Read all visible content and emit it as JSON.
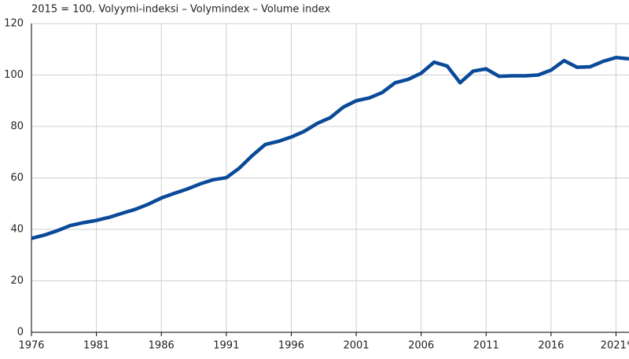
{
  "chart_data": {
    "type": "line",
    "title": "2015 = 100. Volyymi-indeksi – Volymindex – Volume index",
    "x": [
      1976,
      1977,
      1978,
      1979,
      1980,
      1981,
      1982,
      1983,
      1984,
      1985,
      1986,
      1987,
      1988,
      1989,
      1990,
      1991,
      1992,
      1993,
      1994,
      1995,
      1996,
      1997,
      1998,
      1999,
      2000,
      2001,
      2002,
      2003,
      2004,
      2005,
      2006,
      2007,
      2008,
      2009,
      2010,
      2011,
      2012,
      2013,
      2014,
      2015,
      2016,
      2017,
      2018,
      2019,
      2020,
      2021,
      2022
    ],
    "series": [
      {
        "name": "Volume index",
        "color": "#0a4a98",
        "values": [
          36.5,
          37.8,
          39.5,
          41.5,
          42.6,
          43.5,
          44.7,
          46.3,
          47.8,
          49.8,
          52.2,
          54,
          55.7,
          57.7,
          59.3,
          60.1,
          63.8,
          68.7,
          73,
          74.2,
          75.9,
          78.1,
          81.2,
          83.4,
          87.5,
          90,
          91.1,
          93.2,
          97,
          98.3,
          100.7,
          105,
          103.5,
          97,
          101.5,
          102.4,
          99.5,
          99.7,
          99.7,
          100,
          101.9,
          105.6,
          103,
          103.2,
          105.3,
          106.8,
          106.3
        ]
      }
    ],
    "xlim": [
      1976,
      2022
    ],
    "xticks": [
      1976,
      1981,
      1986,
      1991,
      1996,
      2001,
      2006,
      2011,
      2016,
      {
        "value": 2021,
        "label": "2021*"
      }
    ],
    "ylim": [
      0,
      120
    ],
    "yticks": [
      0,
      20,
      40,
      60,
      80,
      100,
      120
    ],
    "grid": true
  }
}
